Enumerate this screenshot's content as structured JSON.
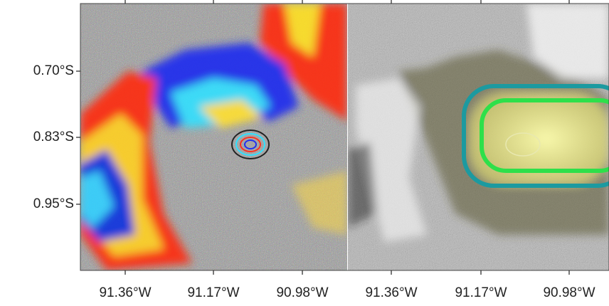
{
  "y_axis_labels": [
    "0.70°S",
    "0.83°S",
    "0.95°S"
  ],
  "left_panel": {
    "x_axis_labels": [
      "91.36°W",
      "91.17°W",
      "90.98°W"
    ]
  },
  "right_panel": {
    "x_axis_labels": [
      "91.36°W",
      "91.17°W",
      "90.98°W"
    ]
  }
}
